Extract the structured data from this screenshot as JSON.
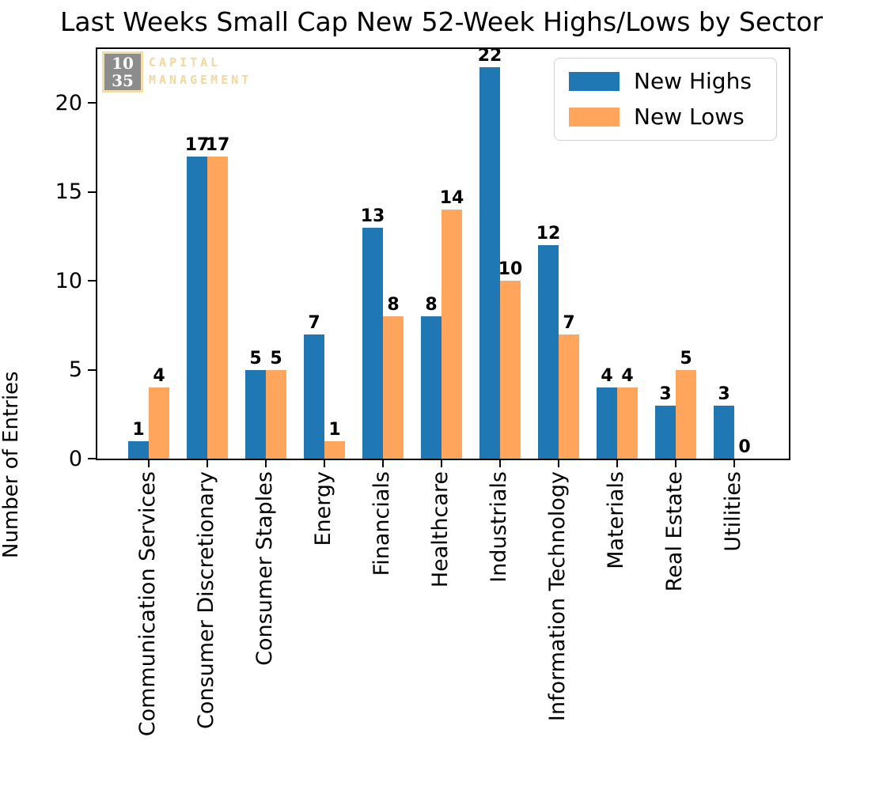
{
  "title": "Last Weeks Small Cap New 52-Week Highs/Lows by Sector",
  "logo": {
    "number_top": "10",
    "number_bottom": "35",
    "text_line1": "CAPITAL",
    "text_line2": "MANAGEMENT"
  },
  "legend": {
    "items": [
      {
        "label": "New Highs",
        "color": "#1f77b4"
      },
      {
        "label": "New Lows",
        "color": "#ffa65c"
      }
    ]
  },
  "chart_data": {
    "type": "bar",
    "title": "Last Weeks Small Cap New 52-Week Highs/Lows by Sector",
    "xlabel": "",
    "ylabel": "Number of Entries",
    "categories": [
      "Communication Services",
      "Consumer Discretionary",
      "Consumer Staples",
      "Energy",
      "Financials",
      "Healthcare",
      "Industrials",
      "Information Technology",
      "Materials",
      "Real Estate",
      "Utilities"
    ],
    "series": [
      {
        "name": "New Highs",
        "color": "#1f77b4",
        "values": [
          1,
          17,
          5,
          7,
          13,
          8,
          22,
          12,
          4,
          3,
          3
        ]
      },
      {
        "name": "New Lows",
        "color": "#ffa65c",
        "values": [
          4,
          17,
          5,
          1,
          8,
          14,
          10,
          7,
          4,
          5,
          0
        ]
      }
    ],
    "yticks": [
      0,
      5,
      10,
      15,
      20
    ],
    "ylim": [
      0,
      23
    ],
    "grid": false,
    "legend_position": "upper right",
    "bar_value_labels": true,
    "x_tick_rotation": 90
  },
  "colors": {
    "axis": "#000000",
    "legend_border": "#d2d2d2",
    "logo_gray": "#8c8c8c",
    "logo_tan": "#f2d79e"
  }
}
